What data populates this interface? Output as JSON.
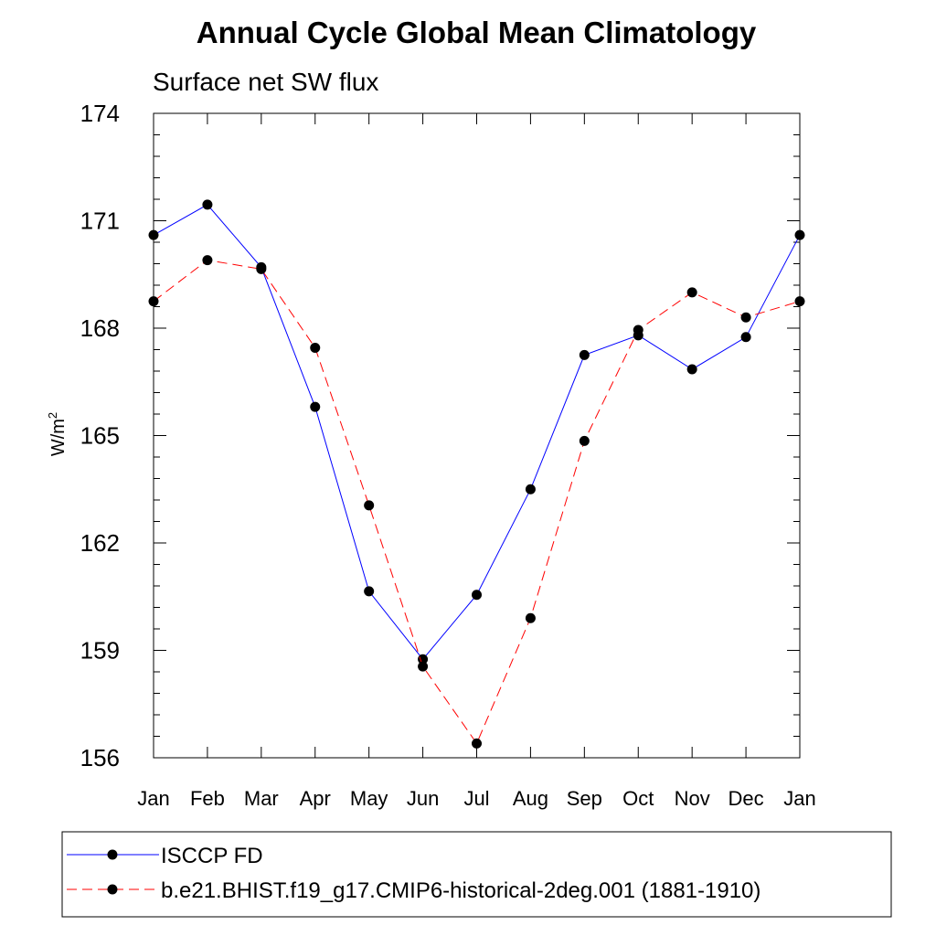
{
  "chart_data": {
    "type": "line",
    "title": "Annual Cycle Global Mean Climatology",
    "subtitle": "Surface net SW flux",
    "ylabel": "W/m",
    "ylabel_sup": "2",
    "xlabel": "",
    "categories": [
      "Jan",
      "Feb",
      "Mar",
      "Apr",
      "May",
      "Jun",
      "Jul",
      "Aug",
      "Sep",
      "Oct",
      "Nov",
      "Dec",
      "Jan"
    ],
    "ylim": [
      156,
      174
    ],
    "yticks": [
      156,
      159,
      162,
      165,
      168,
      171,
      174
    ],
    "grid": false,
    "legend_position": "bottom",
    "series": [
      {
        "name": "ISCCP FD",
        "color": "#0000ff",
        "dash": "solid",
        "marker": "circle",
        "values": [
          170.6,
          171.45,
          169.7,
          165.8,
          160.65,
          158.75,
          160.55,
          163.5,
          167.25,
          167.8,
          166.85,
          167.75,
          170.6
        ]
      },
      {
        "name": "b.e21.BHIST.f19_g17.CMIP6-historical-2deg.001 (1881-1910)",
        "color": "#ff0000",
        "dash": "dashed",
        "marker": "circle",
        "values": [
          168.75,
          169.9,
          169.65,
          167.45,
          163.05,
          158.55,
          156.4,
          159.9,
          164.85,
          167.95,
          169.0,
          168.3,
          168.75
        ]
      }
    ]
  }
}
